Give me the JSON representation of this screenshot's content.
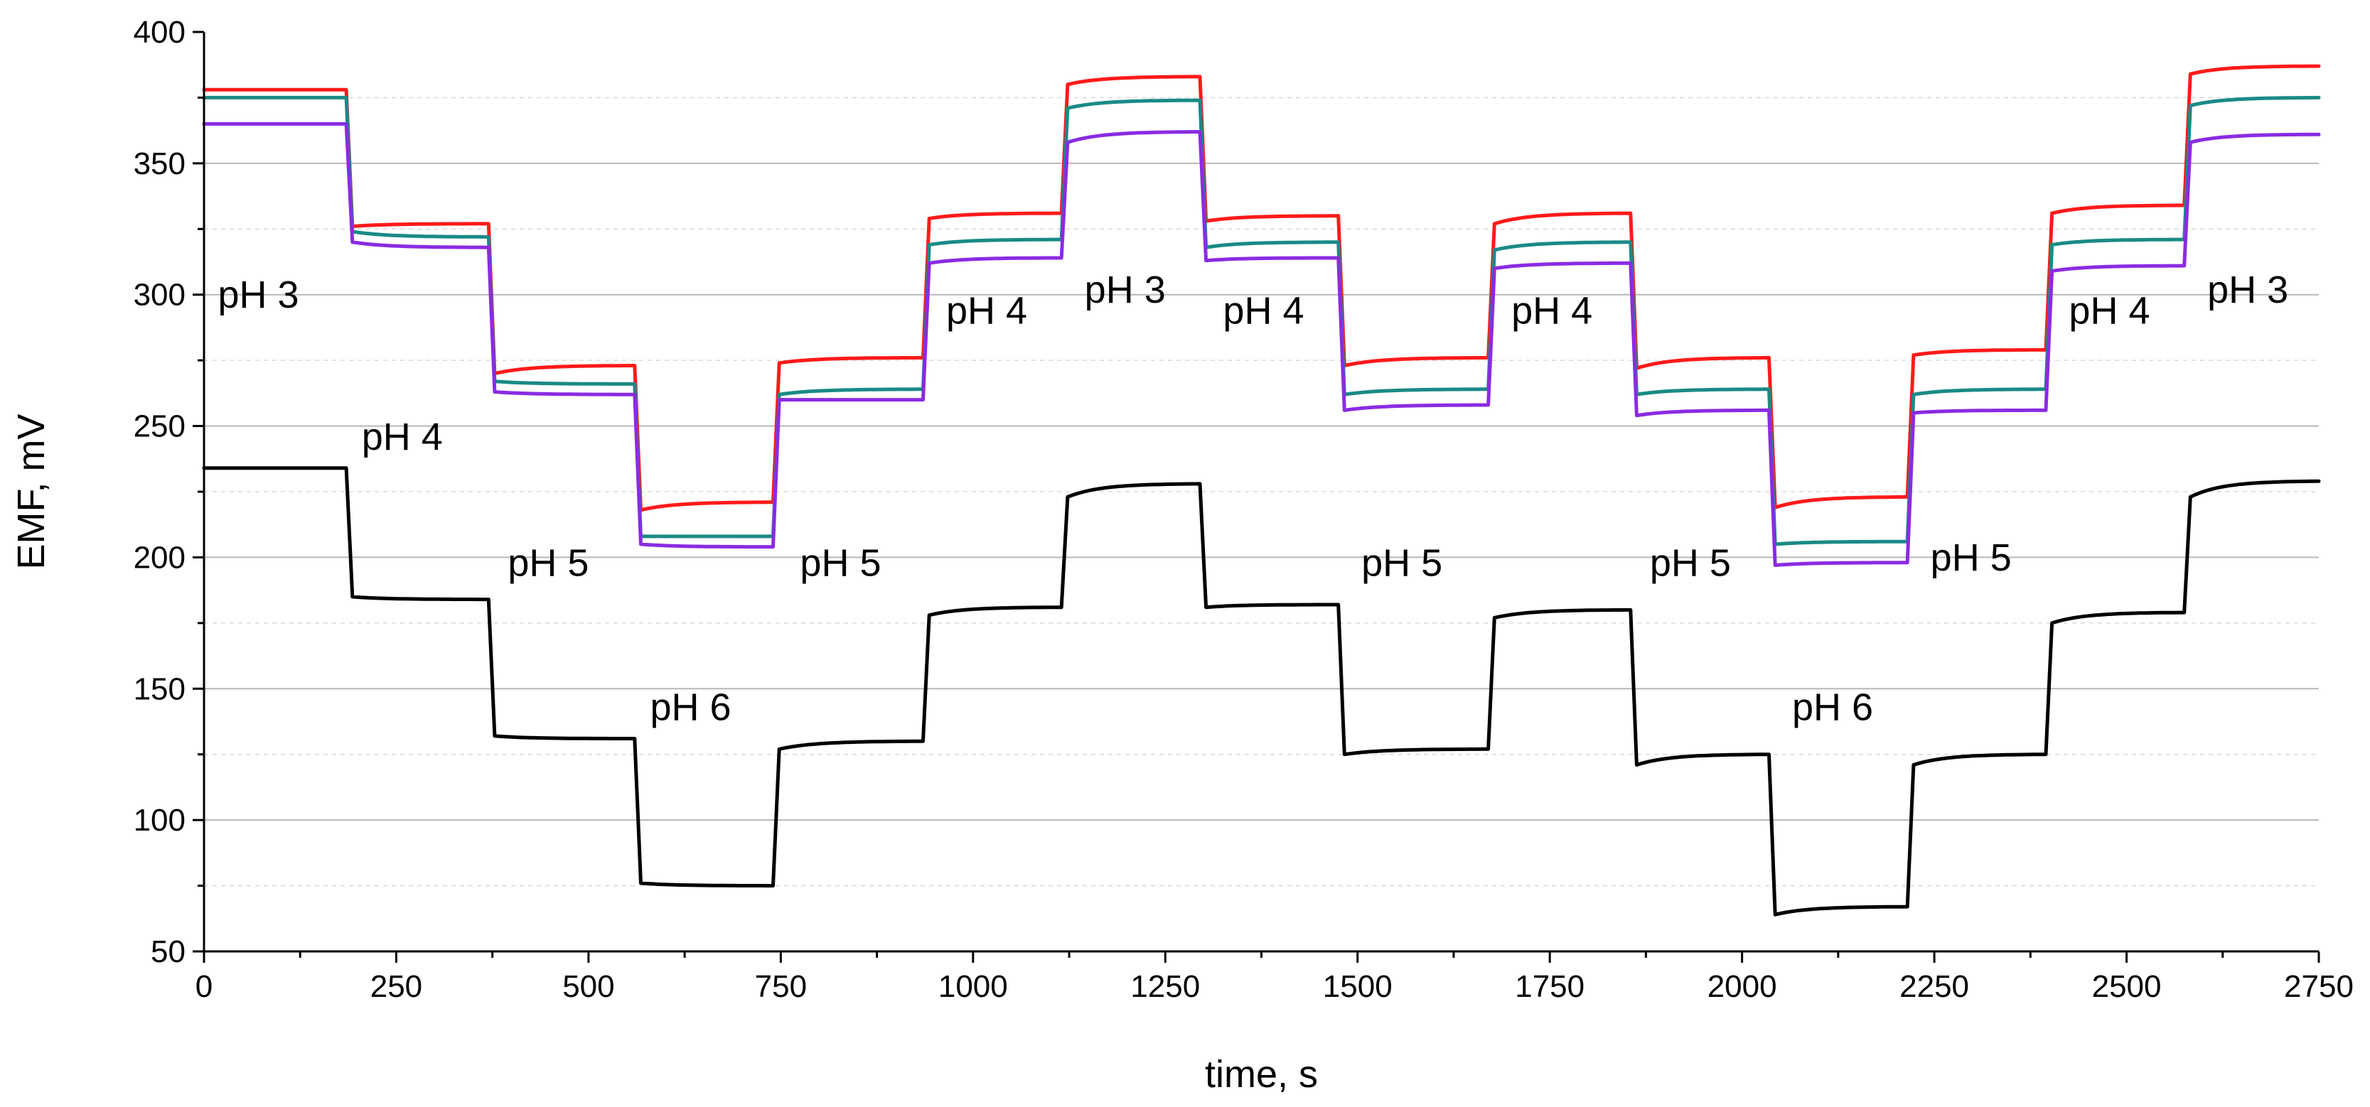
{
  "chart_data": {
    "type": "line",
    "title": "",
    "xlabel": "time, s",
    "ylabel": "EMF, mV",
    "xlim": [
      0,
      2750
    ],
    "ylim": [
      50,
      400
    ],
    "xticks": [
      0,
      250,
      500,
      750,
      1000,
      1250,
      1500,
      1750,
      2000,
      2250,
      2500,
      2750
    ],
    "yticks": [
      50,
      100,
      150,
      200,
      250,
      300,
      350,
      400
    ],
    "grid": true,
    "legend": "none",
    "step_times": [
      0,
      185,
      370,
      560,
      740,
      935,
      1115,
      1295,
      1475,
      1670,
      1855,
      2035,
      2215,
      2395,
      2575,
      2750
    ],
    "ph_sequence": [
      3,
      4,
      5,
      6,
      5,
      4,
      3,
      4,
      5,
      4,
      5,
      6,
      5,
      4,
      3
    ],
    "series": [
      {
        "name": "red",
        "color": "#ff1a1a",
        "levels": [
          [
            378,
            378
          ],
          [
            326,
            327
          ],
          [
            270,
            273
          ],
          [
            218,
            221
          ],
          [
            274,
            276
          ],
          [
            329,
            331
          ],
          [
            380,
            383
          ],
          [
            328,
            330
          ],
          [
            273,
            276
          ],
          [
            327,
            331
          ],
          [
            272,
            276
          ],
          [
            219,
            223
          ],
          [
            277,
            279
          ],
          [
            331,
            334
          ],
          [
            384,
            387
          ]
        ]
      },
      {
        "name": "teal",
        "color": "#1a8a86",
        "levels": [
          [
            375,
            375
          ],
          [
            324,
            322
          ],
          [
            267,
            266
          ],
          [
            208,
            208
          ],
          [
            262,
            264
          ],
          [
            319,
            321
          ],
          [
            371,
            374
          ],
          [
            318,
            320
          ],
          [
            262,
            264
          ],
          [
            317,
            320
          ],
          [
            262,
            264
          ],
          [
            205,
            206
          ],
          [
            262,
            264
          ],
          [
            319,
            321
          ],
          [
            372,
            375
          ]
        ]
      },
      {
        "name": "purple",
        "color": "#8a2be2",
        "levels": [
          [
            365,
            365
          ],
          [
            320,
            318
          ],
          [
            263,
            262
          ],
          [
            205,
            204
          ],
          [
            260,
            260
          ],
          [
            312,
            314
          ],
          [
            358,
            362
          ],
          [
            313,
            314
          ],
          [
            256,
            258
          ],
          [
            310,
            312
          ],
          [
            254,
            256
          ],
          [
            197,
            198
          ],
          [
            255,
            256
          ],
          [
            309,
            311
          ],
          [
            358,
            361
          ]
        ]
      },
      {
        "name": "black",
        "color": "#000000",
        "levels": [
          [
            234,
            234
          ],
          [
            185,
            184
          ],
          [
            132,
            131
          ],
          [
            76,
            75
          ],
          [
            127,
            130
          ],
          [
            178,
            181
          ],
          [
            223,
            228
          ],
          [
            181,
            182
          ],
          [
            125,
            127
          ],
          [
            177,
            180
          ],
          [
            121,
            125
          ],
          [
            64,
            67
          ],
          [
            121,
            125
          ],
          [
            175,
            179
          ],
          [
            223,
            229
          ]
        ]
      }
    ],
    "annotations": [
      {
        "text": "pH 3",
        "x": 18,
        "y": 295
      },
      {
        "text": "pH 4",
        "x": 205,
        "y": 241
      },
      {
        "text": "pH 5",
        "x": 395,
        "y": 193
      },
      {
        "text": "pH 6",
        "x": 580,
        "y": 138
      },
      {
        "text": "pH 5",
        "x": 775,
        "y": 193
      },
      {
        "text": "pH 4",
        "x": 965,
        "y": 289
      },
      {
        "text": "pH 3",
        "x": 1145,
        "y": 297
      },
      {
        "text": "pH 4",
        "x": 1325,
        "y": 289
      },
      {
        "text": "pH 5",
        "x": 1505,
        "y": 193
      },
      {
        "text": "pH 4",
        "x": 1700,
        "y": 289
      },
      {
        "text": "pH 5",
        "x": 1880,
        "y": 193
      },
      {
        "text": "pH 6",
        "x": 2065,
        "y": 138
      },
      {
        "text": "pH 5",
        "x": 2245,
        "y": 195
      },
      {
        "text": "pH 4",
        "x": 2425,
        "y": 289
      },
      {
        "text": "pH 3",
        "x": 2605,
        "y": 297
      }
    ]
  }
}
